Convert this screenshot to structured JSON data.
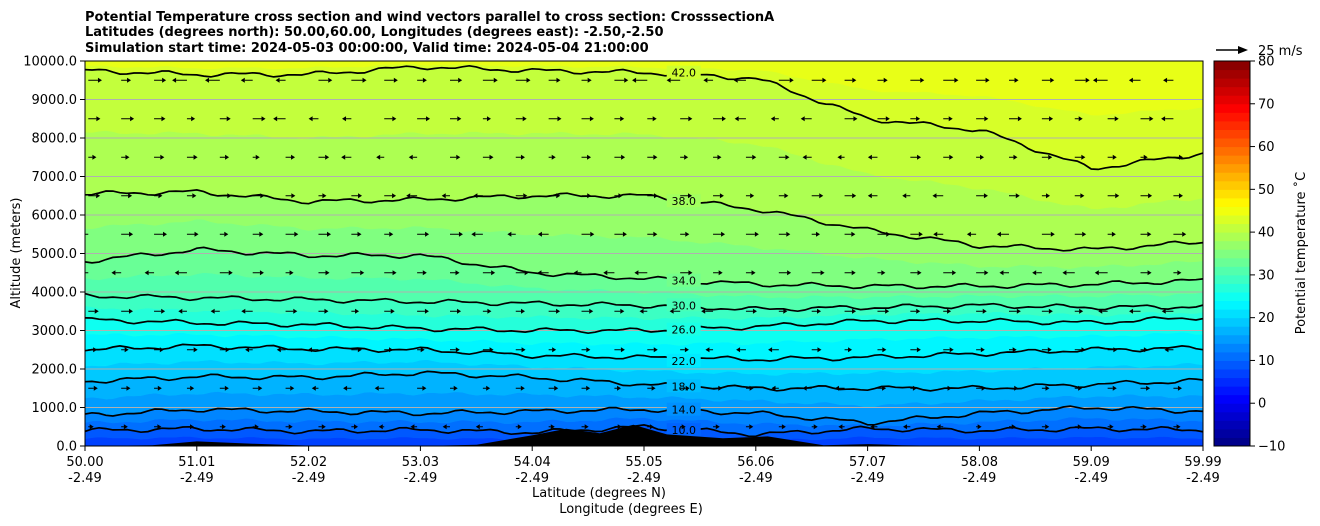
{
  "chart_data": {
    "type": "contour",
    "title": [
      "Potential Temperature cross section and wind vectors parallel to cross section: CrosssectionA",
      "Latitudes (degrees north): 50.00,60.00, Longitudes (degrees east): -2.50,-2.50",
      "Simulation start time: 2024-05-03 00:00:00, Valid time: 2024-05-04 21:00:00"
    ],
    "xlabel_lat": "Latitude (degrees N)",
    "xlabel_lon": "Longitude (degrees E)",
    "ylabel": "Altitude (meters)",
    "colorbar_label": "Potential temperature ˚C",
    "quiver_key": "25 m/s",
    "xlim": [
      50.0,
      59.99
    ],
    "ylim": [
      0,
      10000
    ],
    "x_ticks_lat": [
      "50.00",
      "51.01",
      "52.02",
      "53.03",
      "54.04",
      "55.05",
      "56.06",
      "57.07",
      "58.08",
      "59.09",
      "59.99"
    ],
    "x_ticks_lon": [
      "-2.49",
      "-2.49",
      "-2.49",
      "-2.49",
      "-2.49",
      "-2.49",
      "-2.49",
      "-2.49",
      "-2.49",
      "-2.49",
      "-2.49"
    ],
    "y_ticks": [
      "0.0",
      "1000.0",
      "2000.0",
      "3000.0",
      "4000.0",
      "5000.0",
      "6000.0",
      "7000.0",
      "8000.0",
      "9000.0",
      "10000.0"
    ],
    "colorbar_ticks": [
      "−10",
      "0",
      "10",
      "20",
      "30",
      "40",
      "50",
      "60",
      "70",
      "80"
    ],
    "colorbar_range": [
      -10,
      80
    ],
    "grid": "horizontal",
    "contour_lines": [
      {
        "level": 10,
        "label": "10.0",
        "points": [
          [
            50.0,
            400
          ],
          [
            51.0,
            450
          ],
          [
            52.0,
            380
          ],
          [
            53.0,
            420
          ],
          [
            54.0,
            350
          ],
          [
            55.0,
            500
          ],
          [
            56.0,
            300
          ],
          [
            57.0,
            450
          ],
          [
            58.0,
            400
          ],
          [
            59.0,
            450
          ],
          [
            59.99,
            420
          ]
        ]
      },
      {
        "level": 14,
        "label": "14.0",
        "points": [
          [
            50.0,
            800
          ],
          [
            51.0,
            950
          ],
          [
            52.0,
            900
          ],
          [
            53.0,
            850
          ],
          [
            54.0,
            900
          ],
          [
            55.0,
            950
          ],
          [
            56.0,
            850
          ],
          [
            57.0,
            600
          ],
          [
            58.0,
            850
          ],
          [
            59.0,
            1000
          ],
          [
            59.99,
            900
          ]
        ]
      },
      {
        "level": 18,
        "label": "18.0",
        "points": [
          [
            50.0,
            1680
          ],
          [
            51.0,
            1800
          ],
          [
            52.0,
            1780
          ],
          [
            53.0,
            1900
          ],
          [
            54.0,
            1780
          ],
          [
            55.0,
            1600
          ],
          [
            56.0,
            1500
          ],
          [
            57.0,
            1500
          ],
          [
            58.0,
            1500
          ],
          [
            59.0,
            1600
          ],
          [
            59.99,
            1700
          ]
        ]
      },
      {
        "level": 22,
        "label": "22.0",
        "points": [
          [
            50.0,
            2500
          ],
          [
            51.0,
            2600
          ],
          [
            52.0,
            2520
          ],
          [
            53.0,
            2500
          ],
          [
            54.0,
            2350
          ],
          [
            55.0,
            2300
          ],
          [
            56.0,
            2250
          ],
          [
            57.0,
            2300
          ],
          [
            58.0,
            2400
          ],
          [
            59.0,
            2500
          ],
          [
            59.99,
            2550
          ]
        ]
      },
      {
        "level": 26,
        "label": "26.0",
        "points": [
          [
            50.0,
            3280
          ],
          [
            51.0,
            3200
          ],
          [
            52.0,
            3150
          ],
          [
            53.0,
            3050
          ],
          [
            54.0,
            3000
          ],
          [
            55.0,
            3000
          ],
          [
            56.0,
            3100
          ],
          [
            57.0,
            3250
          ],
          [
            58.0,
            3250
          ],
          [
            59.0,
            3200
          ],
          [
            59.99,
            3350
          ]
        ]
      },
      {
        "level": 30,
        "label": "30.0",
        "points": [
          [
            50.0,
            3900
          ],
          [
            51.0,
            3850
          ],
          [
            52.0,
            3800
          ],
          [
            53.0,
            3750
          ],
          [
            54.0,
            3700
          ],
          [
            55.0,
            3650
          ],
          [
            56.0,
            3550
          ],
          [
            57.0,
            3600
          ],
          [
            58.0,
            3650
          ],
          [
            59.0,
            3600
          ],
          [
            59.99,
            3620
          ]
        ]
      },
      {
        "level": 34,
        "label": "34.0",
        "points": [
          [
            50.0,
            4800
          ],
          [
            51.0,
            5100
          ],
          [
            52.0,
            4950
          ],
          [
            53.0,
            4950
          ],
          [
            54.0,
            4500
          ],
          [
            55.0,
            4350
          ],
          [
            56.0,
            4200
          ],
          [
            57.0,
            4150
          ],
          [
            58.0,
            4150
          ],
          [
            59.0,
            4200
          ],
          [
            59.99,
            4300
          ]
        ]
      },
      {
        "level": 38,
        "label": "38.0",
        "points": [
          [
            50.0,
            6550
          ],
          [
            51.0,
            6600
          ],
          [
            52.0,
            6350
          ],
          [
            53.0,
            6400
          ],
          [
            54.0,
            6500
          ],
          [
            55.0,
            6500
          ],
          [
            56.0,
            6150
          ],
          [
            57.0,
            5600
          ],
          [
            58.0,
            5200
          ],
          [
            59.0,
            5100
          ],
          [
            59.99,
            5300
          ]
        ]
      },
      {
        "level": 42,
        "label": "42.0",
        "points": [
          [
            50.0,
            9750
          ],
          [
            51.0,
            9650
          ],
          [
            52.0,
            9650
          ],
          [
            53.0,
            9850
          ],
          [
            54.0,
            9750
          ],
          [
            55.0,
            9700
          ],
          [
            56.0,
            9550
          ],
          [
            57.0,
            8500
          ],
          [
            58.0,
            8200
          ],
          [
            59.0,
            7200
          ],
          [
            59.99,
            7600
          ]
        ]
      }
    ],
    "orography": [
      [
        50.0,
        0
      ],
      [
        50.6,
        20
      ],
      [
        51.0,
        120
      ],
      [
        51.5,
        60
      ],
      [
        52.0,
        10
      ],
      [
        53.0,
        0
      ],
      [
        53.5,
        30
      ],
      [
        54.0,
        280
      ],
      [
        54.3,
        450
      ],
      [
        54.6,
        330
      ],
      [
        54.9,
        550
      ],
      [
        55.2,
        300
      ],
      [
        55.7,
        200
      ],
      [
        56.1,
        250
      ],
      [
        56.6,
        20
      ],
      [
        57.0,
        50
      ],
      [
        57.3,
        20
      ],
      [
        57.8,
        0
      ],
      [
        58.5,
        0
      ],
      [
        59.99,
        0
      ]
    ],
    "wind_rows_m": [
      500,
      1500,
      2500,
      3500,
      4500,
      5500,
      6500,
      7500,
      8500,
      9500
    ],
    "wind_mean_ms": [
      1.5,
      2.5,
      3,
      3.5,
      4,
      4,
      3.5,
      3,
      4,
      5
    ]
  }
}
